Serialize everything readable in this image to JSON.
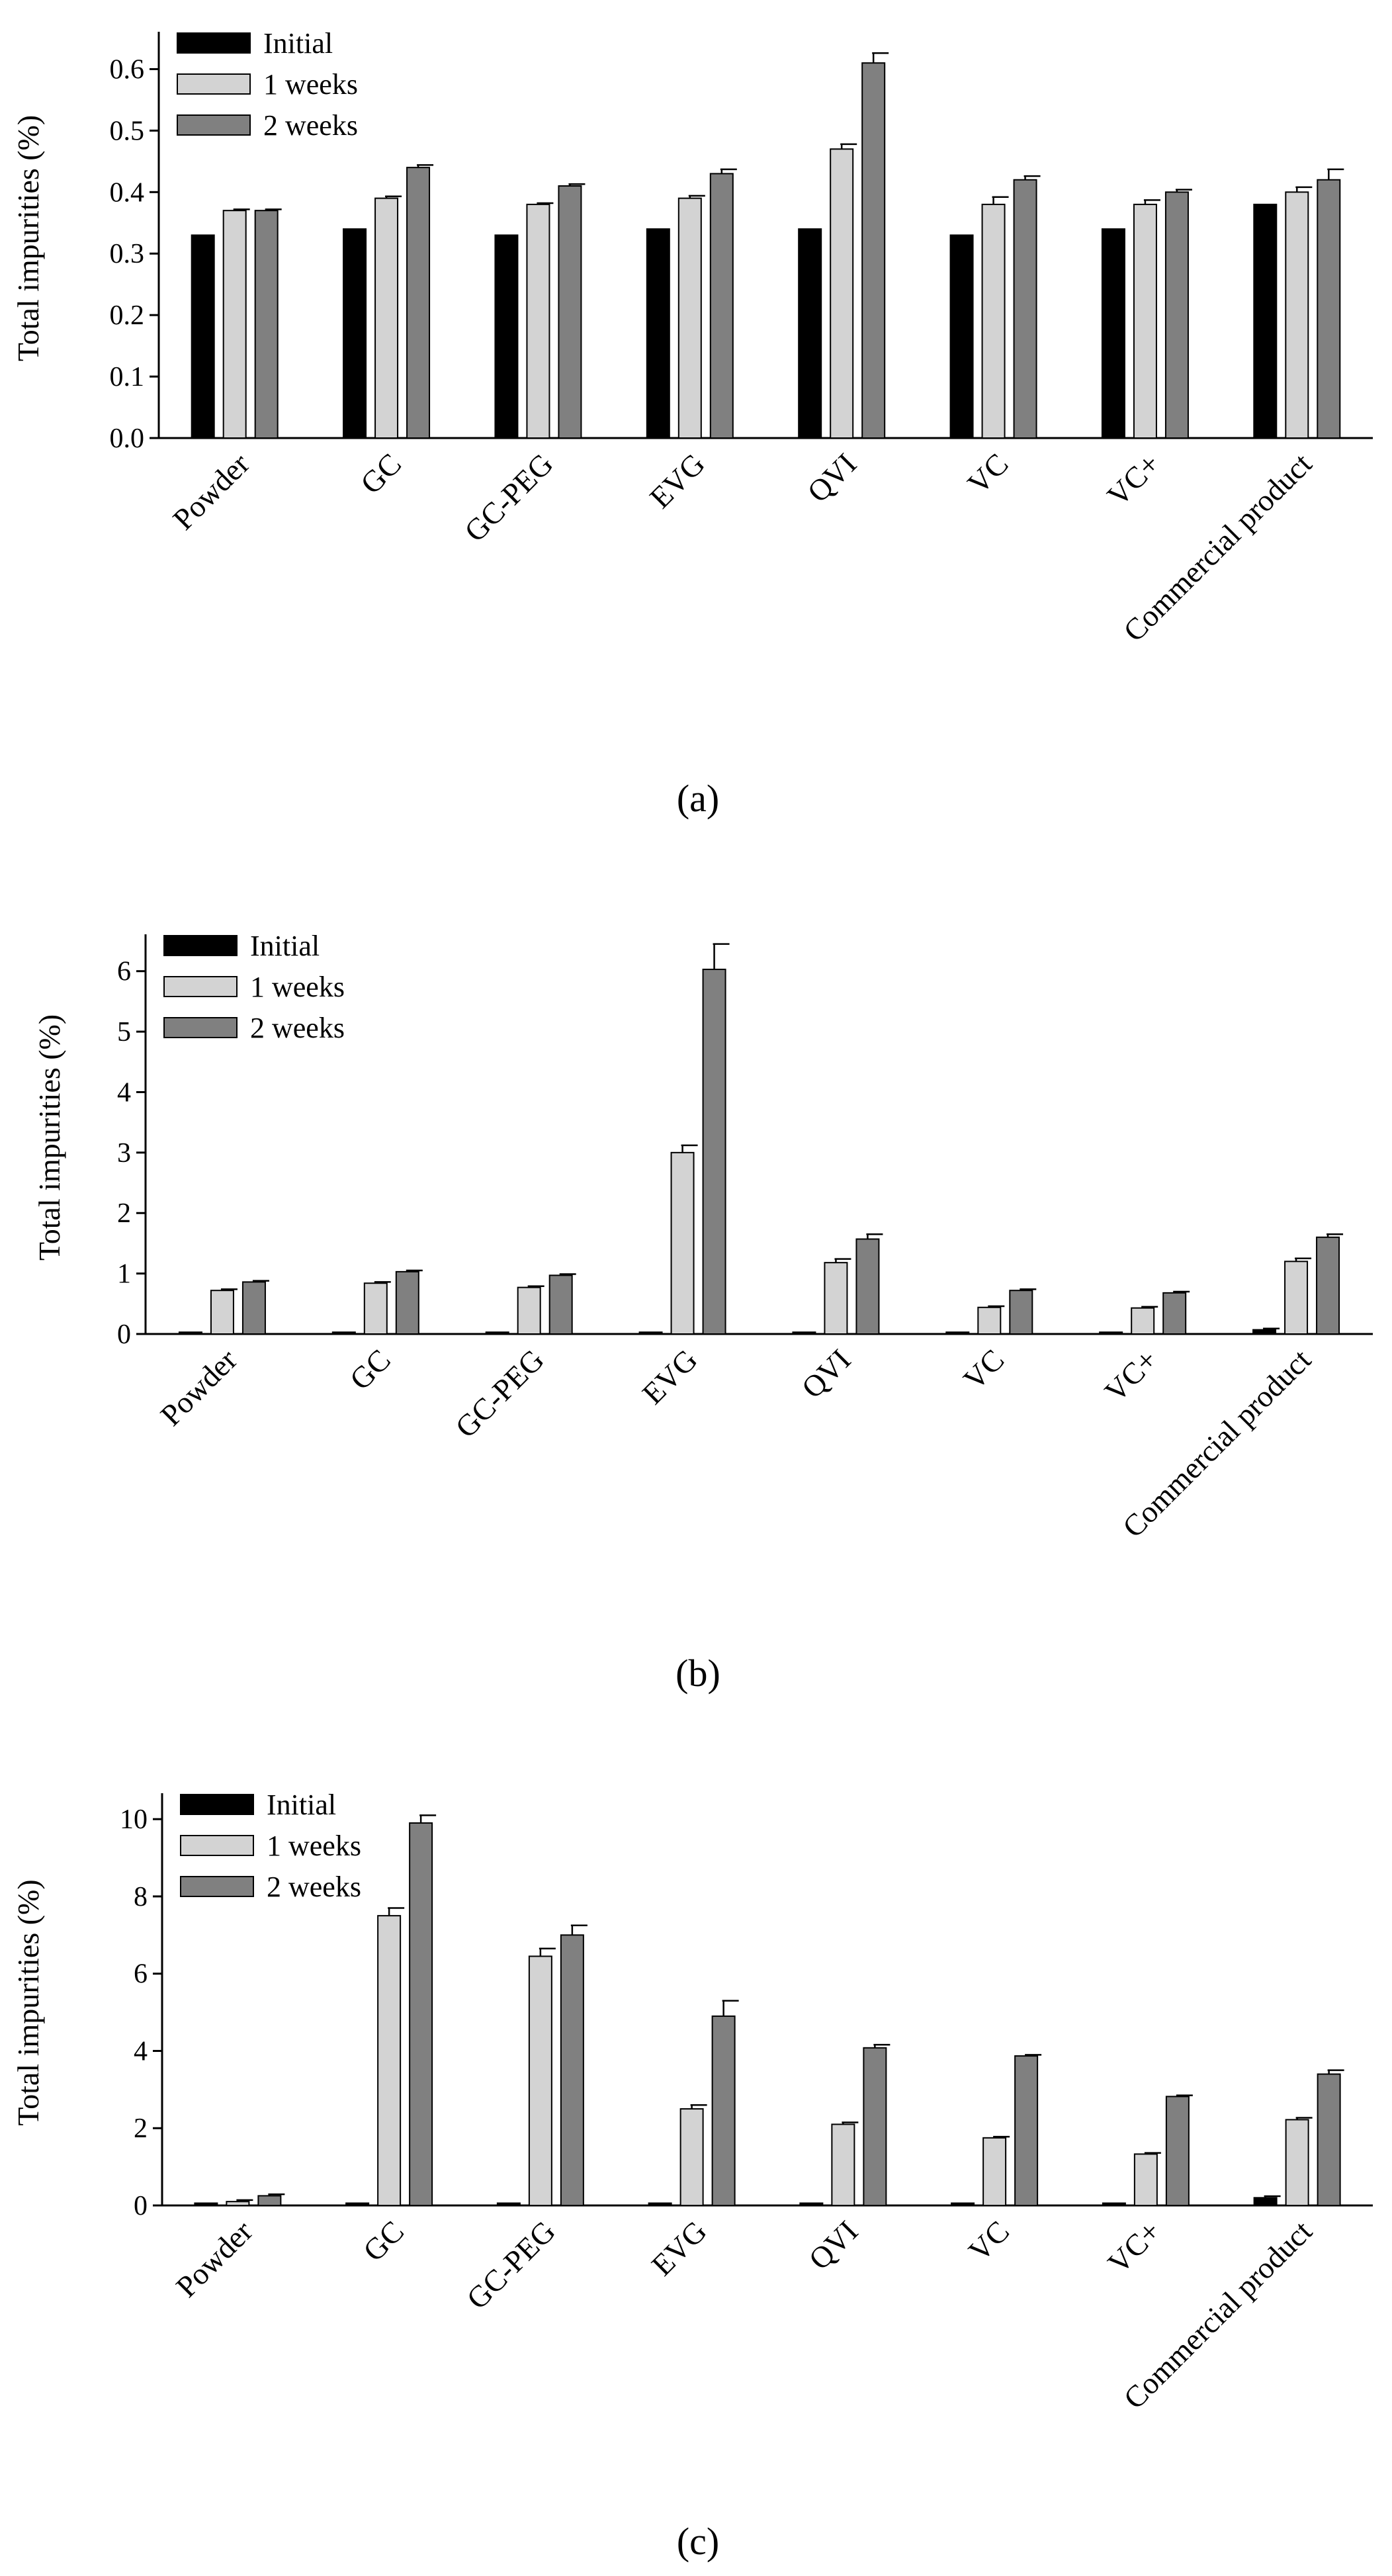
{
  "chart_data": [
    {
      "type": "bar",
      "panel_label": "(a)",
      "ylabel": "Total impurities (%)",
      "xlabel": "",
      "ylim": [
        0,
        0.65
      ],
      "yticks": [
        "0.0",
        "0.1",
        "0.2",
        "0.3",
        "0.4",
        "0.5",
        "0.6"
      ],
      "categories": [
        "Powder",
        "GC",
        "GC-PEG",
        "EVG",
        "QVI",
        "VC",
        "VC+",
        "Commercial product"
      ],
      "series": [
        {
          "name": "Initial",
          "color": "#000000",
          "values": [
            0.33,
            0.34,
            0.33,
            0.34,
            0.34,
            0.33,
            0.34,
            0.38
          ],
          "errors": [
            0,
            0,
            0,
            0,
            0,
            0,
            0,
            0
          ]
        },
        {
          "name": "1 weeks",
          "color": "#d3d3d3",
          "values": [
            0.37,
            0.39,
            0.38,
            0.39,
            0.47,
            0.38,
            0.38,
            0.4
          ],
          "errors": [
            0.002,
            0.003,
            0.002,
            0.004,
            0.008,
            0.012,
            0.007,
            0.008
          ]
        },
        {
          "name": "2 weeks",
          "color": "#808080",
          "values": [
            0.37,
            0.44,
            0.41,
            0.43,
            0.61,
            0.42,
            0.4,
            0.42
          ],
          "errors": [
            0.002,
            0.004,
            0.003,
            0.007,
            0.016,
            0.006,
            0.004,
            0.017
          ]
        }
      ],
      "legend_position": "top-left"
    },
    {
      "type": "bar",
      "panel_label": "(b)",
      "ylabel": "Total impurities (%)",
      "xlabel": "",
      "ylim": [
        0,
        6.5
      ],
      "yticks": [
        "0",
        "1",
        "2",
        "3",
        "4",
        "5",
        "6"
      ],
      "categories": [
        "Powder",
        "GC",
        "GC-PEG",
        "EVG",
        "QVI",
        "VC",
        "VC+",
        "Commercial product"
      ],
      "series": [
        {
          "name": "Initial",
          "color": "#000000",
          "values": [
            0.03,
            0.03,
            0.03,
            0.03,
            0.03,
            0.03,
            0.03,
            0.07
          ],
          "errors": [
            0,
            0,
            0,
            0,
            0,
            0,
            0,
            0.02
          ]
        },
        {
          "name": "1 weeks",
          "color": "#d3d3d3",
          "values": [
            0.72,
            0.84,
            0.77,
            3.0,
            1.18,
            0.44,
            0.43,
            1.2
          ],
          "errors": [
            0.02,
            0.02,
            0.02,
            0.12,
            0.06,
            0.02,
            0.02,
            0.05
          ]
        },
        {
          "name": "2 weeks",
          "color": "#808080",
          "values": [
            0.86,
            1.03,
            0.97,
            6.03,
            1.57,
            0.72,
            0.68,
            1.6
          ],
          "errors": [
            0.02,
            0.02,
            0.02,
            0.42,
            0.08,
            0.02,
            0.02,
            0.05
          ]
        }
      ],
      "legend_position": "top-left"
    },
    {
      "type": "bar",
      "panel_label": "(c)",
      "ylabel": "Total impurities (%)",
      "xlabel": "",
      "ylim": [
        0,
        10.5
      ],
      "yticks": [
        "0",
        "2",
        "4",
        "6",
        "8",
        "10"
      ],
      "categories": [
        "Powder",
        "GC",
        "GC-PEG",
        "EVG",
        "QVI",
        "VC",
        "VC+",
        "Commercial product"
      ],
      "series": [
        {
          "name": "Initial",
          "color": "#000000",
          "values": [
            0.06,
            0.06,
            0.06,
            0.06,
            0.06,
            0.06,
            0.06,
            0.2
          ],
          "errors": [
            0,
            0,
            0,
            0,
            0,
            0,
            0,
            0.04
          ]
        },
        {
          "name": "1 weeks",
          "color": "#d3d3d3",
          "values": [
            0.1,
            7.5,
            6.45,
            2.5,
            2.1,
            1.75,
            1.33,
            2.22
          ],
          "errors": [
            0.04,
            0.2,
            0.2,
            0.1,
            0.05,
            0.03,
            0.03,
            0.05
          ]
        },
        {
          "name": "2 weeks",
          "color": "#808080",
          "values": [
            0.25,
            9.9,
            7.0,
            4.9,
            4.08,
            3.87,
            2.82,
            3.4
          ],
          "errors": [
            0.04,
            0.2,
            0.25,
            0.4,
            0.08,
            0.03,
            0.03,
            0.1
          ]
        }
      ],
      "legend_position": "top-left"
    }
  ]
}
